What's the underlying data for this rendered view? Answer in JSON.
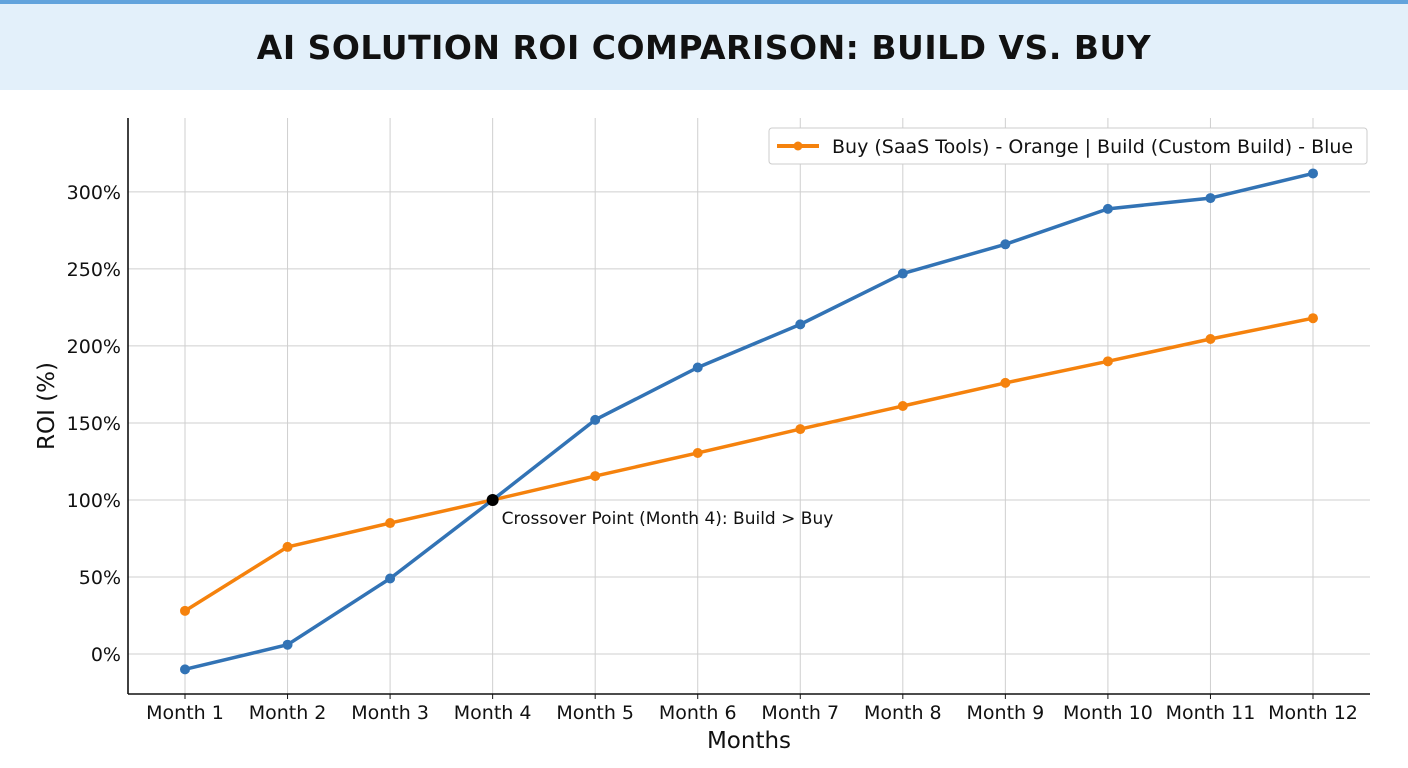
{
  "title": "AI SOLUTION ROI COMPARISON: BUILD VS. BUY",
  "chart_data": {
    "type": "line",
    "title": "AI SOLUTION ROI COMPARISON: BUILD VS. BUY",
    "xlabel": "Months",
    "ylabel": "ROI (%)",
    "categories": [
      "Month 1",
      "Month 2",
      "Month 3",
      "Month 4",
      "Month 5",
      "Month 6",
      "Month 7",
      "Month 8",
      "Month 9",
      "Month 10",
      "Month 11",
      "Month 12"
    ],
    "yticks": [
      0,
      50,
      100,
      150,
      200,
      250,
      300
    ],
    "ytick_labels": [
      "0%",
      "50%",
      "100%",
      "150%",
      "200%",
      "250%",
      "300%"
    ],
    "ylim": [
      -26,
      348
    ],
    "grid": true,
    "legend": {
      "placement": "top-right",
      "text": "Buy (SaaS Tools) - Orange | Build (Custom Build) - Blue"
    },
    "series": [
      {
        "key": "buy",
        "color": "#f5820d",
        "values": [
          28,
          69.5,
          85,
          100,
          115.5,
          130.5,
          146,
          161,
          176,
          190,
          204.5,
          218
        ]
      },
      {
        "key": "build",
        "color": "#3273b5",
        "values": [
          -10,
          6,
          49,
          100,
          152,
          186,
          214,
          247,
          266,
          289,
          296,
          312
        ]
      }
    ],
    "annotation": {
      "text": "Crossover Point (Month 4): Build > Buy",
      "category": "Month 4",
      "value": 100,
      "marker_color": "#000000"
    }
  }
}
